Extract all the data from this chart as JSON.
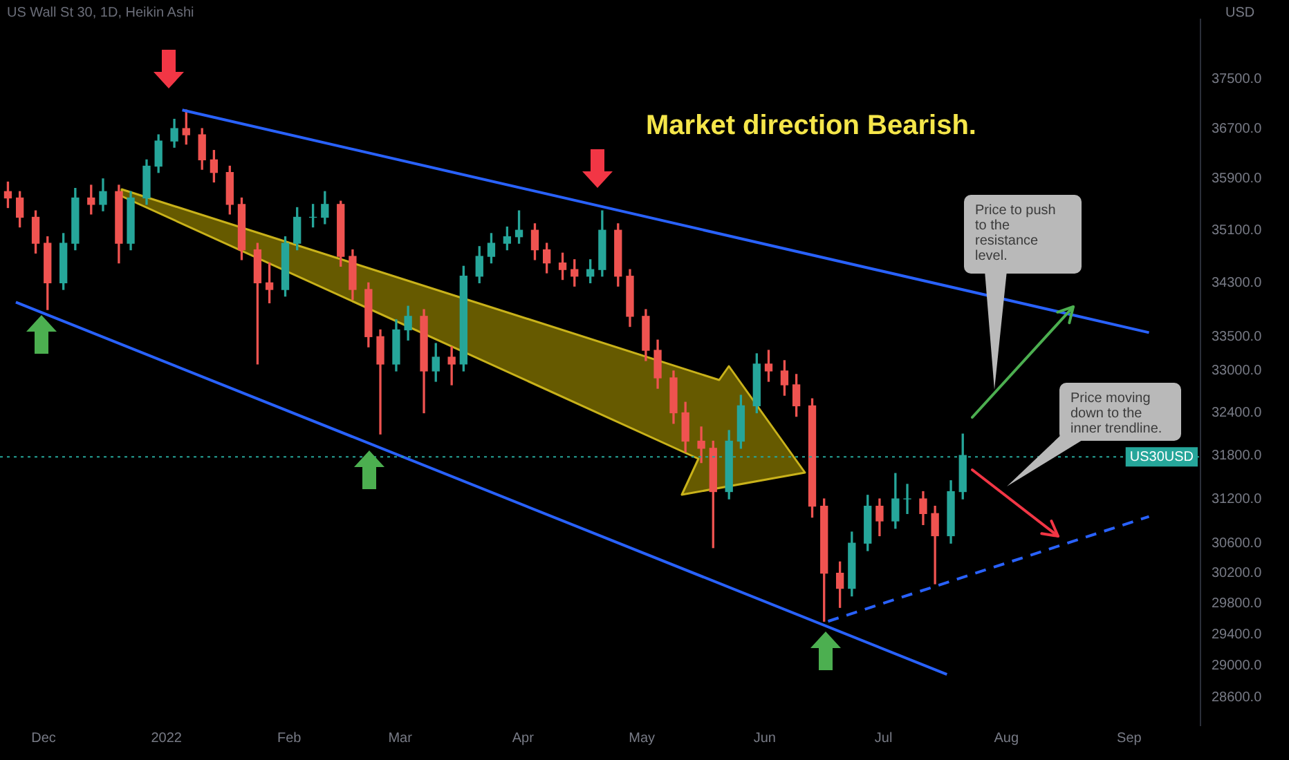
{
  "chart_data": {
    "type": "candlestick",
    "title": "US Wall St 30, 1D, Heikin Ashi",
    "ylabel": "USD",
    "x": [
      "2021-11-22",
      "2021-11-25",
      "2021-11-29",
      "2021-12-02",
      "2021-12-06",
      "2021-12-09",
      "2021-12-13",
      "2021-12-16",
      "2021-12-20",
      "2021-12-23",
      "2021-12-27",
      "2021-12-30",
      "2022-01-03",
      "2022-01-06",
      "2022-01-10",
      "2022-01-13",
      "2022-01-17",
      "2022-01-20",
      "2022-01-24",
      "2022-01-27",
      "2022-01-31",
      "2022-02-03",
      "2022-02-07",
      "2022-02-10",
      "2022-02-14",
      "2022-02-17",
      "2022-02-21",
      "2022-02-24",
      "2022-02-28",
      "2022-03-03",
      "2022-03-07",
      "2022-03-10",
      "2022-03-14",
      "2022-03-17",
      "2022-03-21",
      "2022-03-24",
      "2022-03-28",
      "2022-03-31",
      "2022-04-04",
      "2022-04-07",
      "2022-04-11",
      "2022-04-14",
      "2022-04-18",
      "2022-04-21",
      "2022-04-25",
      "2022-04-28",
      "2022-05-02",
      "2022-05-05",
      "2022-05-09",
      "2022-05-12",
      "2022-05-16",
      "2022-05-19",
      "2022-05-23",
      "2022-05-26",
      "2022-05-30",
      "2022-06-02",
      "2022-06-06",
      "2022-06-09",
      "2022-06-13",
      "2022-06-16",
      "2022-06-20",
      "2022-06-23",
      "2022-06-27",
      "2022-06-30",
      "2022-07-04",
      "2022-07-07",
      "2022-07-11",
      "2022-07-14",
      "2022-07-18",
      "2022-07-21"
    ],
    "ohlc": [
      [
        35700,
        35850,
        35450,
        35600
      ],
      [
        35600,
        35700,
        35150,
        35300
      ],
      [
        35300,
        35400,
        34750,
        34900
      ],
      [
        34900,
        35000,
        33900,
        34300
      ],
      [
        34300,
        35050,
        34200,
        34900
      ],
      [
        34900,
        35750,
        34800,
        35600
      ],
      [
        35600,
        35800,
        35350,
        35500
      ],
      [
        35500,
        35900,
        35400,
        35700
      ],
      [
        35700,
        35800,
        34600,
        34900
      ],
      [
        34900,
        35700,
        34800,
        35600
      ],
      [
        35600,
        36200,
        35500,
        36100
      ],
      [
        36100,
        36600,
        36000,
        36500
      ],
      [
        36500,
        36850,
        36400,
        36700
      ],
      [
        36700,
        37000,
        36450,
        36600
      ],
      [
        36600,
        36700,
        36050,
        36200
      ],
      [
        36200,
        36350,
        35850,
        36000
      ],
      [
        36000,
        36100,
        35350,
        35500
      ],
      [
        35500,
        35600,
        34650,
        34800
      ],
      [
        34800,
        34900,
        33100,
        34300
      ],
      [
        34300,
        34600,
        34000,
        34200
      ],
      [
        34200,
        35000,
        34100,
        34900
      ],
      [
        34900,
        35450,
        34800,
        35300
      ],
      [
        35300,
        35500,
        35150,
        35300
      ],
      [
        35300,
        35700,
        35200,
        35500
      ],
      [
        35500,
        35550,
        34550,
        34700
      ],
      [
        34700,
        34800,
        34050,
        34200
      ],
      [
        34200,
        34300,
        33350,
        33500
      ],
      [
        33500,
        33600,
        32100,
        33100
      ],
      [
        33100,
        33750,
        33000,
        33600
      ],
      [
        33600,
        33950,
        33450,
        33800
      ],
      [
        33800,
        33900,
        32400,
        33000
      ],
      [
        33000,
        33400,
        32850,
        33200
      ],
      [
        33200,
        33350,
        32800,
        33100
      ],
      [
        33100,
        34550,
        33000,
        34400
      ],
      [
        34400,
        34850,
        34300,
        34700
      ],
      [
        34700,
        35050,
        34600,
        34900
      ],
      [
        34900,
        35150,
        34800,
        35000
      ],
      [
        35000,
        35400,
        34900,
        35100
      ],
      [
        35100,
        35200,
        34650,
        34800
      ],
      [
        34800,
        34900,
        34450,
        34600
      ],
      [
        34600,
        34750,
        34350,
        34500
      ],
      [
        34500,
        34650,
        34250,
        34400
      ],
      [
        34400,
        34650,
        34300,
        34500
      ],
      [
        34500,
        35400,
        34400,
        35100
      ],
      [
        35100,
        35200,
        34250,
        34400
      ],
      [
        34400,
        34500,
        33650,
        33800
      ],
      [
        33800,
        33900,
        33150,
        33300
      ],
      [
        33300,
        33450,
        32750,
        32900
      ],
      [
        32900,
        33000,
        32250,
        32400
      ],
      [
        32400,
        32550,
        31850,
        32000
      ],
      [
        32000,
        32200,
        31700,
        31900
      ],
      [
        31900,
        32000,
        30540,
        31300
      ],
      [
        31300,
        32150,
        31200,
        32000
      ],
      [
        32000,
        32650,
        31900,
        32500
      ],
      [
        32500,
        33250,
        32400,
        33100
      ],
      [
        33100,
        33300,
        32850,
        33000
      ],
      [
        33000,
        33150,
        32650,
        32800
      ],
      [
        32800,
        32950,
        32350,
        32500
      ],
      [
        32500,
        32600,
        30950,
        31100
      ],
      [
        31100,
        31200,
        29570,
        30200
      ],
      [
        30200,
        30350,
        29750,
        30000
      ],
      [
        30000,
        30750,
        29900,
        30600
      ],
      [
        30600,
        31250,
        30500,
        31100
      ],
      [
        31100,
        31200,
        30700,
        30900
      ],
      [
        30900,
        31550,
        30800,
        31200
      ],
      [
        31200,
        31400,
        31000,
        31200
      ],
      [
        31200,
        31300,
        30850,
        31000
      ],
      [
        31000,
        31100,
        30060,
        30700
      ],
      [
        30700,
        31450,
        30600,
        31300
      ],
      [
        31300,
        32100,
        31200,
        31800
      ]
    ],
    "series": [
      {
        "type": "line",
        "color": "#2962ff",
        "x": [
          "2022-01-05",
          "2022-09-06"
        ],
        "values": [
          37000,
          33560
        ]
      },
      {
        "type": "line",
        "color": "#2962ff",
        "x": [
          "2021-11-24",
          "2022-07-17"
        ],
        "values": [
          34010,
          28890
        ]
      },
      {
        "type": "line",
        "color": "#2962ff",
        "line_style": "dashed",
        "x": [
          "2022-06-17",
          "2022-09-06"
        ],
        "values": [
          29570,
          30960
        ]
      }
    ],
    "xlim": [
      "2021-11-20",
      "2022-09-19"
    ],
    "xticks": [
      {
        "value": "2021-12-01",
        "label": "Dec"
      },
      {
        "value": "2022-01-01",
        "label": "2022"
      },
      {
        "value": "2022-02-01",
        "label": "Feb"
      },
      {
        "value": "2022-03-01",
        "label": "Mar"
      },
      {
        "value": "2022-04-01",
        "label": "Apr"
      },
      {
        "value": "2022-05-01",
        "label": "May"
      },
      {
        "value": "2022-06-01",
        "label": "Jun"
      },
      {
        "value": "2022-07-01",
        "label": "Jul"
      },
      {
        "value": "2022-08-01",
        "label": "Aug"
      },
      {
        "value": "2022-09-01",
        "label": "Sep"
      }
    ],
    "log": "y",
    "ylim": [
      28250,
      38500
    ],
    "yticks": [
      {
        "value": 37500,
        "label": "37500.0"
      },
      {
        "value": 36700,
        "label": "36700.0"
      },
      {
        "value": 35900,
        "label": "35900.0"
      },
      {
        "value": 35100,
        "label": "35100.0"
      },
      {
        "value": 34300,
        "label": "34300.0"
      },
      {
        "value": 33500,
        "label": "33500.0"
      },
      {
        "value": 33000,
        "label": "33000.0"
      },
      {
        "value": 32400,
        "label": "32400.0"
      },
      {
        "value": 31800,
        "label": "31800.0"
      },
      {
        "value": 31200,
        "label": "31200.0"
      },
      {
        "value": 30600,
        "label": "30600.0"
      },
      {
        "value": 30200,
        "label": "30200.0"
      },
      {
        "value": 29800,
        "label": "29800.0"
      },
      {
        "value": 29400,
        "label": "29400.0"
      },
      {
        "value": 29000,
        "label": "29000.0"
      },
      {
        "value": 28600,
        "label": "28600.0"
      }
    ],
    "ref_lines": [
      {
        "axis": "y",
        "value": 31780,
        "label": "US30USD",
        "color": "#26a69a",
        "line_style": "dotted"
      }
    ],
    "annotations": [
      "Market direction Bearish.",
      "Price to push to the resistance level.",
      "Price moving down to the inner trendline."
    ],
    "grid": false,
    "legend": false
  }
}
